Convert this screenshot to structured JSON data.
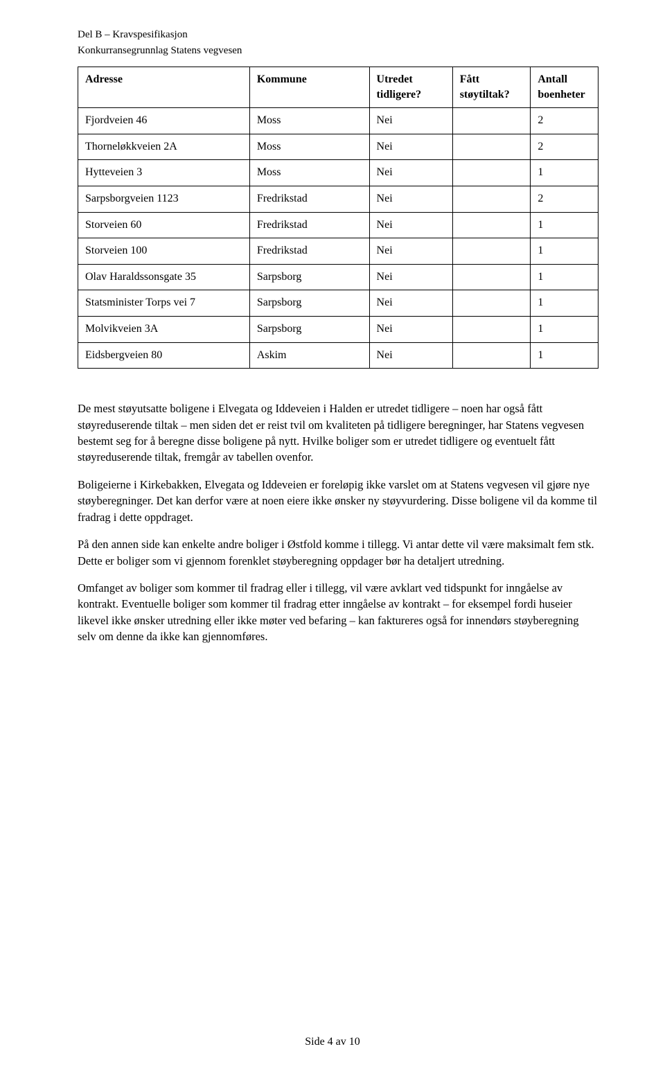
{
  "header": {
    "line1": "Del B – Kravspesifikasjon",
    "line2": "Konkurransegrunnlag Statens vegvesen"
  },
  "table": {
    "columns": [
      {
        "label": "Adresse",
        "width": "33%"
      },
      {
        "label": "Kommune",
        "width": "23%"
      },
      {
        "label": "Utredet tidligere?",
        "width": "16%"
      },
      {
        "label": "Fått støytiltak?",
        "width": "15%"
      },
      {
        "label": "Antall boenheter",
        "width": "13%"
      }
    ],
    "rows": [
      [
        "Fjordveien 46",
        "Moss",
        "Nei",
        "",
        "2"
      ],
      [
        "Thorneløkkveien 2A",
        "Moss",
        "Nei",
        "",
        "2"
      ],
      [
        "Hytteveien 3",
        "Moss",
        "Nei",
        "",
        "1"
      ],
      [
        "Sarpsborgveien 1123",
        "Fredrikstad",
        "Nei",
        "",
        "2"
      ],
      [
        "Storveien 60",
        "Fredrikstad",
        "Nei",
        "",
        "1"
      ],
      [
        "Storveien 100",
        "Fredrikstad",
        "Nei",
        "",
        "1"
      ],
      [
        "Olav Haraldssonsgate 35",
        "Sarpsborg",
        "Nei",
        "",
        "1"
      ],
      [
        "Statsminister Torps vei 7",
        "Sarpsborg",
        "Nei",
        "",
        "1"
      ],
      [
        "Molvikveien 3A",
        "Sarpsborg",
        "Nei",
        "",
        "1"
      ],
      [
        "Eidsbergveien 80",
        "Askim",
        "Nei",
        "",
        "1"
      ]
    ]
  },
  "paragraphs": [
    "De mest støyutsatte boligene i Elvegata og Iddeveien i Halden er utredet tidligere – noen har også fått støyreduserende tiltak – men siden det er reist tvil om kvaliteten på tidligere beregninger, har Statens vegvesen bestemt seg for å beregne disse boligene på nytt. Hvilke boliger som er utredet tidligere og eventuelt fått støyreduserende tiltak, fremgår av tabellen ovenfor.",
    "Boligeierne i Kirkebakken, Elvegata og Iddeveien er foreløpig ikke varslet om at Statens vegvesen vil gjøre nye støyberegninger. Det kan derfor være at noen eiere ikke ønsker ny støyvurdering. Disse boligene vil da komme til fradrag i dette oppdraget.",
    "På den annen side kan enkelte andre boliger i Østfold komme i tillegg. Vi antar dette vil være maksimalt fem stk.  Dette er boliger som vi gjennom forenklet støyberegning oppdager bør ha detaljert utredning.",
    "Omfanget av boliger som kommer til fradrag eller i tillegg, vil være avklart ved tidspunkt for inngåelse av kontrakt. Eventuelle boliger som kommer til fradrag etter inngåelse av kontrakt – for eksempel fordi huseier likevel ikke ønsker utredning eller ikke møter ved befaring – kan faktureres også for innendørs støyberegning selv om denne da ikke kan gjennomføres."
  ],
  "footer": "Side 4 av 10",
  "style": {
    "page_bg": "#ffffff",
    "text_color": "#000000",
    "border_color": "#000000",
    "body_font_size_pt": 12,
    "header_font_size_pt": 11
  }
}
